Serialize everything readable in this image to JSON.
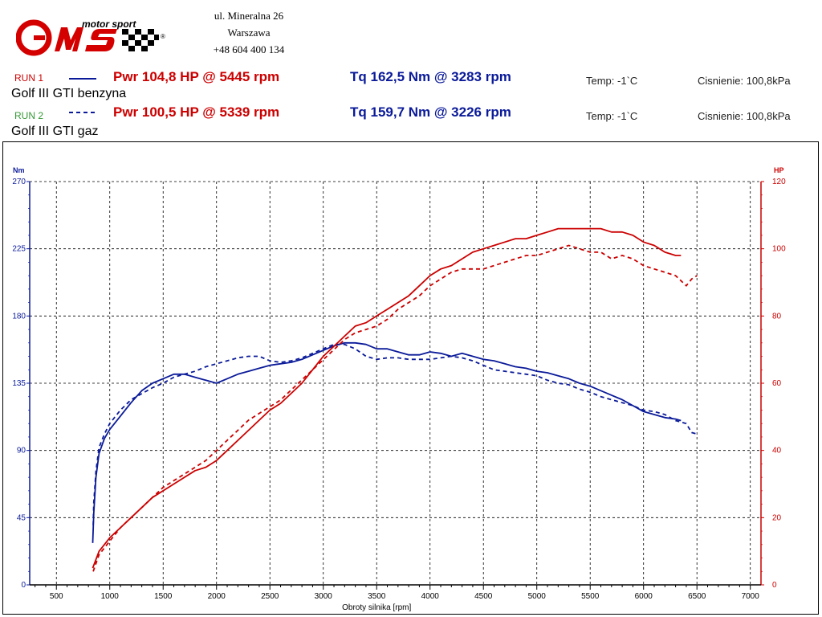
{
  "header": {
    "brand_text": "motor sport",
    "logo_letters": "GMS",
    "address_lines": [
      "ul. Mineralna 26",
      "Warszawa",
      "+48 604 400 134"
    ]
  },
  "runs": [
    {
      "label": "RUN 1",
      "label_color": "#cc0000",
      "name": "Golf III GTI benzyna",
      "pwr": "Pwr 104,8 HP @ 5445 rpm",
      "tq": "Tq 162,5 Nm @ 3283 rpm",
      "temp": "Temp: -1`C",
      "pressure": "Cisnienie: 100,8kPa",
      "line_style": "solid"
    },
    {
      "label": "RUN 2",
      "label_color": "#339933",
      "name": "Golf III GTI gaz",
      "pwr": "Pwr 100,5 HP @ 5339 rpm",
      "tq": "Tq 159,7 Nm @ 3226 rpm",
      "temp": "Temp: -1`C",
      "pressure": "Cisnienie: 100,8kPa",
      "line_style": "dashed"
    }
  ],
  "colors": {
    "torque": "#0a1a99",
    "power": "#cc0000",
    "grid": "#000000"
  },
  "chart_data": {
    "type": "line",
    "xlabel": "Obroty silnika [rpm]",
    "ylabel_left": "Nm",
    "ylabel_right": "HP",
    "xlim": [
      250,
      7100
    ],
    "ylim_left": [
      0,
      270
    ],
    "ylim_right": [
      0,
      120
    ],
    "xticks": [
      500,
      1000,
      1500,
      2000,
      2500,
      3000,
      3500,
      4000,
      4500,
      5000,
      5500,
      6000,
      6500,
      7000
    ],
    "yticks_left": [
      0,
      45,
      90,
      135,
      180,
      225,
      270
    ],
    "yticks_right": [
      0,
      20,
      40,
      60,
      80,
      100,
      120
    ],
    "grid": true,
    "series": [
      {
        "name": "RUN 1",
        "quantity": "torque",
        "axis": "left",
        "style": "solid",
        "x": [
          840,
          850,
          870,
          900,
          950,
          1000,
          1100,
          1200,
          1300,
          1400,
          1500,
          1600,
          1700,
          1800,
          1900,
          2000,
          2100,
          2200,
          2300,
          2400,
          2500,
          2600,
          2700,
          2800,
          2900,
          3000,
          3100,
          3200,
          3300,
          3400,
          3500,
          3600,
          3700,
          3800,
          3900,
          4000,
          4100,
          4200,
          4300,
          4400,
          4500,
          4600,
          4700,
          4800,
          4900,
          5000,
          5100,
          5200,
          5300,
          5400,
          5500,
          5600,
          5700,
          5800,
          5900,
          6000,
          6100,
          6200,
          6300,
          6350
        ],
        "y": [
          28,
          48,
          72,
          88,
          98,
          104,
          113,
          122,
          130,
          135,
          138,
          141,
          141,
          139,
          137,
          135,
          138,
          141,
          143,
          145,
          147,
          148,
          149,
          151,
          154,
          157,
          160,
          162,
          162,
          161,
          158,
          158,
          156,
          154,
          154,
          156,
          155,
          153,
          155,
          153,
          151,
          150,
          148,
          146,
          145,
          143,
          142,
          140,
          138,
          135,
          133,
          130,
          127,
          124,
          120,
          116,
          114,
          112,
          111,
          110
        ]
      },
      {
        "name": "RUN 2",
        "quantity": "torque",
        "axis": "left",
        "style": "dashed",
        "x": [
          845,
          850,
          870,
          900,
          950,
          1000,
          1100,
          1200,
          1300,
          1400,
          1500,
          1600,
          1700,
          1800,
          1900,
          2000,
          2100,
          2200,
          2300,
          2400,
          2500,
          2600,
          2700,
          2800,
          2900,
          3000,
          3100,
          3200,
          3300,
          3400,
          3500,
          3600,
          3700,
          3800,
          3900,
          4000,
          4100,
          4200,
          4300,
          4400,
          4500,
          4600,
          4700,
          4800,
          4900,
          5000,
          5100,
          5200,
          5300,
          5400,
          5500,
          5600,
          5700,
          5800,
          5900,
          6000,
          6100,
          6200,
          6300,
          6400,
          6450,
          6500
        ],
        "y": [
          40,
          55,
          76,
          92,
          101,
          108,
          117,
          124,
          128,
          132,
          135,
          139,
          141,
          143,
          146,
          148,
          150,
          152,
          153,
          153,
          150,
          149,
          150,
          152,
          155,
          158,
          161,
          161,
          158,
          153,
          151,
          152,
          152,
          151,
          151,
          151,
          152,
          153,
          152,
          150,
          147,
          144,
          143,
          142,
          141,
          140,
          137,
          135,
          134,
          131,
          129,
          126,
          124,
          122,
          120,
          117,
          116,
          114,
          110,
          108,
          102,
          101
        ]
      },
      {
        "name": "RUN 1",
        "quantity": "power",
        "axis": "right",
        "style": "solid",
        "x": [
          840,
          900,
          1000,
          1100,
          1200,
          1300,
          1400,
          1500,
          1600,
          1700,
          1800,
          1900,
          2000,
          2100,
          2200,
          2300,
          2400,
          2500,
          2600,
          2700,
          2800,
          2900,
          3000,
          3100,
          3200,
          3300,
          3400,
          3500,
          3600,
          3700,
          3800,
          3900,
          4000,
          4100,
          4200,
          4300,
          4400,
          4500,
          4600,
          4700,
          4800,
          4900,
          5000,
          5100,
          5200,
          5300,
          5400,
          5500,
          5600,
          5700,
          5800,
          5900,
          6000,
          6100,
          6200,
          6300,
          6350
        ],
        "y": [
          5,
          10,
          14,
          17,
          20,
          23,
          26,
          28,
          30,
          32,
          34,
          35,
          37,
          40,
          43,
          46,
          49,
          52,
          54,
          57,
          60,
          64,
          68,
          71,
          74,
          77,
          78,
          80,
          82,
          84,
          86,
          89,
          92,
          94,
          95,
          97,
          99,
          100,
          101,
          102,
          103,
          103,
          104,
          105,
          106,
          106,
          106,
          106,
          106,
          105,
          105,
          104,
          102,
          101,
          99,
          98,
          98
        ]
      },
      {
        "name": "RUN 2",
        "quantity": "power",
        "axis": "right",
        "style": "dashed",
        "x": [
          845,
          900,
          1000,
          1100,
          1200,
          1300,
          1400,
          1500,
          1600,
          1700,
          1800,
          1900,
          2000,
          2100,
          2200,
          2300,
          2400,
          2500,
          2600,
          2700,
          2800,
          2900,
          3000,
          3100,
          3200,
          3300,
          3400,
          3500,
          3600,
          3700,
          3800,
          3900,
          4000,
          4100,
          4200,
          4300,
          4400,
          4500,
          4600,
          4700,
          4800,
          4900,
          5000,
          5100,
          5200,
          5300,
          5400,
          5500,
          5600,
          5700,
          5800,
          5900,
          6000,
          6100,
          6200,
          6300,
          6400,
          6450,
          6500
        ],
        "y": [
          4,
          9,
          13,
          17,
          20,
          23,
          26,
          29,
          31,
          33,
          35,
          37,
          40,
          43,
          46,
          49,
          51,
          53,
          55,
          58,
          61,
          64,
          67,
          70,
          73,
          75,
          76,
          77,
          79,
          82,
          84,
          86,
          89,
          91,
          93,
          94,
          94,
          94,
          95,
          96,
          97,
          98,
          98,
          99,
          100,
          101,
          100,
          99,
          99,
          97,
          98,
          97,
          95,
          94,
          93,
          92,
          89,
          91,
          92
        ]
      }
    ]
  }
}
